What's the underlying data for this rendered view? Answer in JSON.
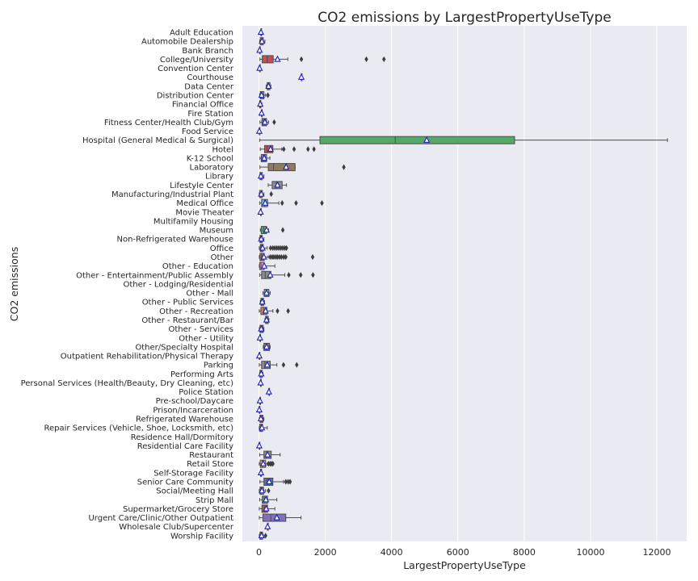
{
  "chart_data": {
    "type": "boxplot",
    "orientation": "horizontal",
    "title": "CO2 emissions by LargestPropertyUseType",
    "xlabel": "LargestPropertyUseType",
    "ylabel": "CO2 emissions",
    "xlim": [
      -500,
      12900
    ],
    "xticks": [
      0,
      2000,
      4000,
      6000,
      8000,
      10000,
      12000
    ],
    "grid": true,
    "categories": [
      "Adult Education",
      "Automobile Dealership",
      "Bank Branch",
      "College/University",
      "Convention Center",
      "Courthouse",
      "Data Center",
      "Distribution Center",
      "Financial Office",
      "Fire Station",
      "Fitness Center/Health Club/Gym",
      "Food Service",
      "Hospital (General Medical & Surgical)",
      "Hotel",
      "K-12 School",
      "Laboratory",
      "Library",
      "Lifestyle Center",
      "Manufacturing/Industrial Plant",
      "Medical Office",
      "Movie Theater",
      "Multifamily Housing",
      "Museum",
      "Non-Refrigerated Warehouse",
      "Office",
      "Other",
      "Other - Education",
      "Other - Entertainment/Public Assembly",
      "Other - Lodging/Residential",
      "Other - Mall",
      "Other - Public Services",
      "Other - Recreation",
      "Other - Restaurant/Bar",
      "Other - Services",
      "Other - Utility",
      "Other/Specialty Hospital",
      "Outpatient Rehabilitation/Physical Therapy",
      "Parking",
      "Performing Arts",
      "Personal Services (Health/Beauty, Dry Cleaning, etc)",
      "Police Station",
      "Pre-school/Daycare",
      "Prison/Incarceration",
      "Refrigerated Warehouse",
      "Repair Services (Vehicle, Shoe, Locksmith, etc)",
      "Residence Hall/Dormitory",
      "Residential Care Facility",
      "Restaurant",
      "Retail Store",
      "Self-Storage Facility",
      "Senior Care Community",
      "Social/Meeting Hall",
      "Strip Mall",
      "Supermarket/Grocery Store",
      "Urgent Care/Clinic/Other Outpatient",
      "Wholesale Club/Supercenter",
      "Worship Facility"
    ],
    "boxes": [
      {
        "min": 60,
        "q1": 60,
        "median": 60,
        "q3": 60,
        "max": 60,
        "mean": 60,
        "outliers": []
      },
      {
        "min": 20,
        "q1": 40,
        "median": 90,
        "q3": 130,
        "max": 180,
        "mean": 90,
        "outliers": []
      },
      {
        "min": 20,
        "q1": 20,
        "median": 20,
        "q3": 20,
        "max": 20,
        "mean": 20,
        "outliers": []
      },
      {
        "min": 30,
        "q1": 100,
        "median": 250,
        "q3": 430,
        "max": 870,
        "mean": 560,
        "outliers": [
          1280,
          3240,
          3770
        ]
      },
      {
        "min": 20,
        "q1": 20,
        "median": 20,
        "q3": 20,
        "max": 20,
        "mean": 20,
        "outliers": []
      },
      {
        "min": 1280,
        "q1": 1280,
        "median": 1280,
        "q3": 1280,
        "max": 1280,
        "mean": 1280,
        "outliers": []
      },
      {
        "min": 220,
        "q1": 250,
        "median": 290,
        "q3": 330,
        "max": 360,
        "mean": 290,
        "outliers": []
      },
      {
        "min": 20,
        "q1": 40,
        "median": 70,
        "q3": 150,
        "max": 200,
        "mean": 80,
        "outliers": [
          270
        ]
      },
      {
        "min": 10,
        "q1": 20,
        "median": 40,
        "q3": 60,
        "max": 90,
        "mean": 40,
        "outliers": []
      },
      {
        "min": 80,
        "q1": 80,
        "median": 80,
        "q3": 80,
        "max": 80,
        "mean": 80,
        "outliers": []
      },
      {
        "min": 30,
        "q1": 90,
        "median": 160,
        "q3": 230,
        "max": 290,
        "mean": 180,
        "outliers": [
          460
        ]
      },
      {
        "min": 10,
        "q1": 10,
        "median": 10,
        "q3": 10,
        "max": 10,
        "mean": 10,
        "outliers": []
      },
      {
        "min": 20,
        "q1": 1840,
        "median": 4110,
        "q3": 7710,
        "max": 12320,
        "mean": 5060,
        "outliers": []
      },
      {
        "min": 40,
        "q1": 170,
        "median": 240,
        "q3": 420,
        "max": 690,
        "mean": 350,
        "outliers": [
          750,
          1060,
          1480,
          1660
        ]
      },
      {
        "min": 30,
        "q1": 70,
        "median": 140,
        "q3": 230,
        "max": 330,
        "mean": 160,
        "outliers": []
      },
      {
        "min": 30,
        "q1": 280,
        "median": 440,
        "q3": 1090,
        "max": 1090,
        "mean": 820,
        "outliers": [
          2560
        ]
      },
      {
        "min": 20,
        "q1": 30,
        "median": 60,
        "q3": 100,
        "max": 150,
        "mean": 60,
        "outliers": []
      },
      {
        "min": 280,
        "q1": 400,
        "median": 520,
        "q3": 700,
        "max": 830,
        "mean": 560,
        "outliers": []
      },
      {
        "min": 10,
        "q1": 20,
        "median": 60,
        "q3": 100,
        "max": 150,
        "mean": 70,
        "outliers": [
          370
        ]
      },
      {
        "min": 20,
        "q1": 80,
        "median": 170,
        "q3": 260,
        "max": 600,
        "mean": 190,
        "outliers": [
          700,
          1120,
          1900
        ]
      },
      {
        "min": 50,
        "q1": 50,
        "median": 50,
        "q3": 50,
        "max": 50,
        "mean": 50,
        "outliers": []
      },
      {
        "min": null,
        "q1": null,
        "median": null,
        "q3": null,
        "max": null,
        "mean": null,
        "outliers": []
      },
      {
        "min": 40,
        "q1": 70,
        "median": 140,
        "q3": 230,
        "max": 290,
        "mean": 230,
        "outliers": [
          720
        ]
      },
      {
        "min": 10,
        "q1": 30,
        "median": 60,
        "q3": 100,
        "max": 150,
        "mean": 70,
        "outliers": []
      },
      {
        "min": 10,
        "q1": 40,
        "median": 70,
        "q3": 130,
        "max": 250,
        "mean": 110,
        "outliers": [
          350,
          420,
          480,
          540,
          600,
          660,
          720,
          780,
          830
        ]
      },
      {
        "min": 10,
        "q1": 30,
        "median": 80,
        "q3": 160,
        "max": 280,
        "mean": 150,
        "outliers": [
          340,
          400,
          450,
          510,
          560,
          620,
          680,
          750,
          810,
          1620
        ]
      },
      {
        "min": 10,
        "q1": 20,
        "median": 60,
        "q3": 160,
        "max": 480,
        "mean": 160,
        "outliers": []
      },
      {
        "min": 20,
        "q1": 80,
        "median": 190,
        "q3": 360,
        "max": 780,
        "mean": 340,
        "outliers": [
          900,
          1260,
          1630
        ]
      },
      {
        "min": null,
        "q1": null,
        "median": null,
        "q3": null,
        "max": null,
        "mean": null,
        "outliers": []
      },
      {
        "min": 120,
        "q1": 160,
        "median": 230,
        "q3": 300,
        "max": 340,
        "mean": 230,
        "outliers": []
      },
      {
        "min": 40,
        "q1": 60,
        "median": 100,
        "q3": 140,
        "max": 170,
        "mean": 100,
        "outliers": []
      },
      {
        "min": 10,
        "q1": 60,
        "median": 140,
        "q3": 240,
        "max": 420,
        "mean": 200,
        "outliers": [
          560,
          880
        ]
      },
      {
        "min": 180,
        "q1": 200,
        "median": 230,
        "q3": 280,
        "max": 300,
        "mean": 230,
        "outliers": []
      },
      {
        "min": 10,
        "q1": 30,
        "median": 60,
        "q3": 130,
        "max": 150,
        "mean": 70,
        "outliers": []
      },
      {
        "min": 30,
        "q1": 30,
        "median": 30,
        "q3": 30,
        "max": 30,
        "mean": 30,
        "outliers": []
      },
      {
        "min": 130,
        "q1": 150,
        "median": 220,
        "q3": 320,
        "max": 340,
        "mean": 230,
        "outliers": []
      },
      {
        "min": 10,
        "q1": 10,
        "median": 10,
        "q3": 10,
        "max": 10,
        "mean": 10,
        "outliers": []
      },
      {
        "min": 10,
        "q1": 80,
        "median": 180,
        "q3": 340,
        "max": 540,
        "mean": 250,
        "outliers": [
          740,
          1140
        ]
      },
      {
        "min": 20,
        "q1": 30,
        "median": 60,
        "q3": 100,
        "max": 120,
        "mean": 70,
        "outliers": []
      },
      {
        "min": 50,
        "q1": 50,
        "median": 50,
        "q3": 50,
        "max": 50,
        "mean": 50,
        "outliers": []
      },
      {
        "min": 300,
        "q1": 300,
        "median": 300,
        "q3": 300,
        "max": 300,
        "mean": 300,
        "outliers": []
      },
      {
        "min": 30,
        "q1": 30,
        "median": 30,
        "q3": 30,
        "max": 30,
        "mean": 30,
        "outliers": []
      },
      {
        "min": 10,
        "q1": 10,
        "median": 10,
        "q3": 10,
        "max": 10,
        "mean": 10,
        "outliers": []
      },
      {
        "min": 10,
        "q1": 30,
        "median": 60,
        "q3": 120,
        "max": 150,
        "mean": 60,
        "outliers": []
      },
      {
        "min": 10,
        "q1": 20,
        "median": 60,
        "q3": 110,
        "max": 250,
        "mean": 90,
        "outliers": []
      },
      {
        "min": null,
        "q1": null,
        "median": null,
        "q3": null,
        "max": null,
        "mean": null,
        "outliers": []
      },
      {
        "min": 10,
        "q1": 10,
        "median": 10,
        "q3": 10,
        "max": 10,
        "mean": 10,
        "outliers": []
      },
      {
        "min": 20,
        "q1": 150,
        "median": 230,
        "q3": 370,
        "max": 640,
        "mean": 260,
        "outliers": []
      },
      {
        "min": 10,
        "q1": 40,
        "median": 100,
        "q3": 200,
        "max": 250,
        "mean": 130,
        "outliers": [
          290,
          340,
          380,
          420
        ]
      },
      {
        "min": 40,
        "q1": 50,
        "median": 60,
        "q3": 80,
        "max": 90,
        "mean": 60,
        "outliers": []
      },
      {
        "min": 30,
        "q1": 150,
        "median": 250,
        "q3": 420,
        "max": 740,
        "mean": 310,
        "outliers": [
          810,
          880,
          940
        ]
      },
      {
        "min": 10,
        "q1": 30,
        "median": 60,
        "q3": 140,
        "max": 200,
        "mean": 90,
        "outliers": [
          290
        ]
      },
      {
        "min": 20,
        "q1": 100,
        "median": 160,
        "q3": 260,
        "max": 540,
        "mean": 210,
        "outliers": []
      },
      {
        "min": 10,
        "q1": 90,
        "median": 160,
        "q3": 260,
        "max": 480,
        "mean": 220,
        "outliers": []
      },
      {
        "min": 10,
        "q1": 120,
        "median": 360,
        "q3": 810,
        "max": 1270,
        "mean": 540,
        "outliers": []
      },
      {
        "min": 260,
        "q1": 260,
        "median": 260,
        "q3": 260,
        "max": 260,
        "mean": 260,
        "outliers": []
      },
      {
        "min": 10,
        "q1": 30,
        "median": 60,
        "q3": 110,
        "max": 130,
        "mean": 80,
        "outliers": [
          200
        ]
      }
    ],
    "colors": [
      "#4c72b0",
      "#dd8452",
      "#55a868",
      "#c44e52",
      "#8172b3",
      "#937860",
      "#da8bc3",
      "#8c8c8c",
      "#ccb974",
      "#64b5cd",
      "#4c72b0",
      "#dd8452",
      "#55a868",
      "#c44e52",
      "#8172b3",
      "#937860",
      "#da8bc3",
      "#8c8c8c",
      "#ccb974",
      "#64b5cd",
      "#4c72b0",
      "#dd8452",
      "#55a868",
      "#c44e52",
      "#8172b3",
      "#937860",
      "#da8bc3",
      "#8c8c8c",
      "#ccb974",
      "#64b5cd",
      "#4c72b0",
      "#dd8452",
      "#55a868",
      "#c44e52",
      "#8172b3",
      "#937860",
      "#da8bc3",
      "#8c8c8c",
      "#ccb974",
      "#64b5cd",
      "#4c72b0",
      "#dd8452",
      "#55a868",
      "#c44e52",
      "#8172b3",
      "#937860",
      "#da8bc3",
      "#8c8c8c",
      "#ccb974",
      "#64b5cd",
      "#4c72b0",
      "#dd8452",
      "#55a868",
      "#c44e52",
      "#8172b3",
      "#937860",
      "#da8bc3"
    ],
    "style": {
      "background": "#eaeaf2",
      "grid_color": "#ffffff",
      "line_color": "#4d4d4d",
      "mean_marker_color": "#1f1fbf"
    }
  }
}
